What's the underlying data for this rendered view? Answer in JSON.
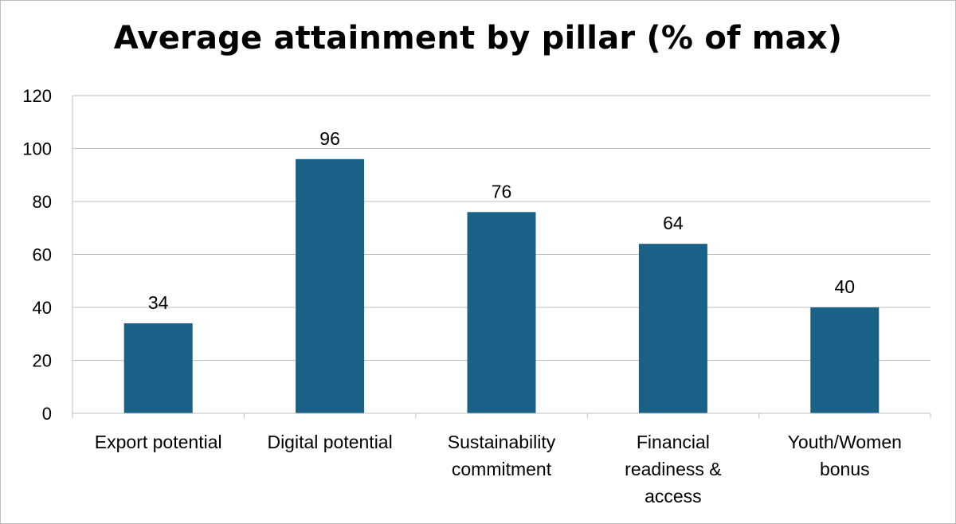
{
  "chart_data": {
    "type": "bar",
    "title": "Average attainment by pillar (% of max)",
    "categories": [
      [
        "Export potential"
      ],
      [
        "Digital potential"
      ],
      [
        "Sustainability",
        "commitment"
      ],
      [
        "Financial",
        "readiness &",
        "access"
      ],
      [
        "Youth/Women",
        "bonus"
      ]
    ],
    "values": [
      34,
      96,
      76,
      64,
      40
    ],
    "data_labels": [
      "34",
      "96",
      "76",
      "64",
      "40"
    ],
    "ylim": [
      0,
      120
    ],
    "yticks": [
      0,
      20,
      40,
      60,
      80,
      100,
      120
    ],
    "grid": true,
    "legend": "none",
    "bar_color": "#1a6187",
    "grid_color": "#bfbfbf"
  }
}
